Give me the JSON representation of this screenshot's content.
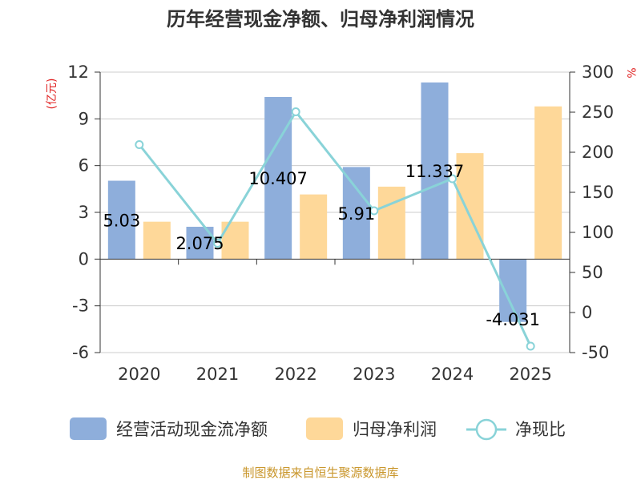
{
  "chart_data": {
    "type": "bar",
    "title": "历年经营现金净额、归母净利润情况",
    "categories": [
      "2020",
      "2021",
      "2022",
      "2023",
      "2024",
      "2025"
    ],
    "y_left": {
      "unit_label": "(亿元)",
      "ylim": [
        -6,
        12
      ],
      "ticks": [
        -6,
        -3,
        0,
        3,
        6,
        9,
        12
      ]
    },
    "y_right": {
      "unit_label": "%",
      "ylim": [
        -50,
        300
      ],
      "ticks": [
        -50,
        0,
        50,
        100,
        150,
        200,
        250,
        300
      ]
    },
    "series": [
      {
        "name": "经营活动现金流净额",
        "type": "bar",
        "axis": "left",
        "color": "#8eaedb",
        "values": [
          5.03,
          2.075,
          10.407,
          5.91,
          11.337,
          -4.031
        ],
        "labels": [
          "5.03",
          "2.075",
          "10.407",
          "5.91",
          "11.337",
          "-4.031"
        ]
      },
      {
        "name": "归母净利润",
        "type": "bar",
        "axis": "left",
        "color": "#fed899",
        "values": [
          2.4,
          2.4,
          4.15,
          4.65,
          6.8,
          9.8
        ]
      },
      {
        "name": "净现比",
        "type": "line",
        "axis": "right",
        "color": "#89d3d8",
        "values": [
          209.5,
          86.5,
          250.5,
          127,
          167,
          -42
        ]
      }
    ]
  },
  "source_note": "制图数据来自恒生聚源数据库"
}
